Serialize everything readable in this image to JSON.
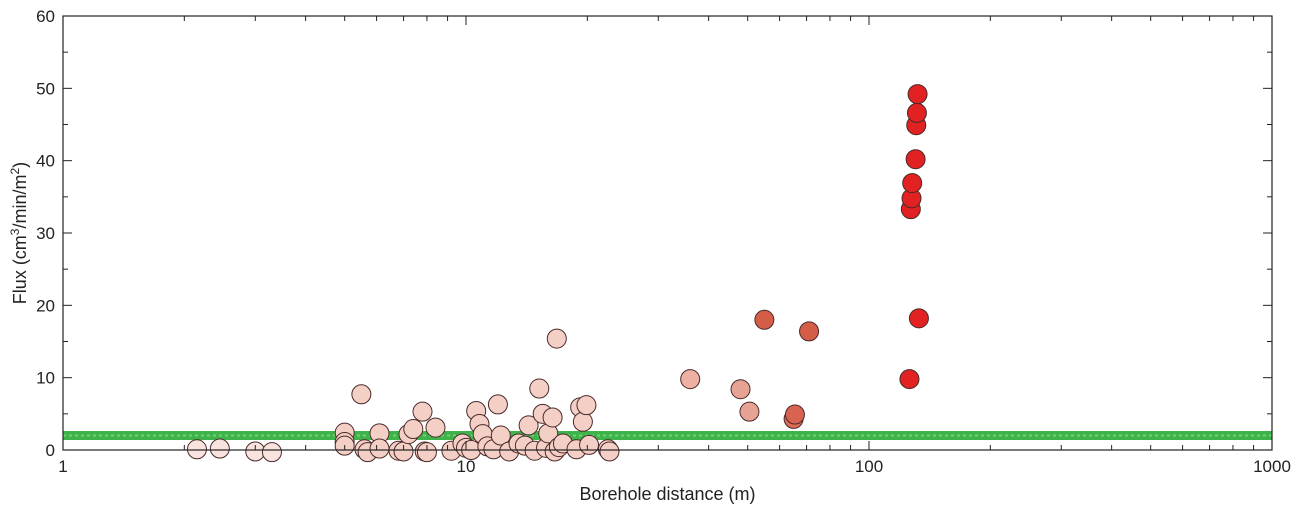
{
  "chart_data": {
    "type": "scatter",
    "xscale": "log",
    "xlabel": "Borehole distance (m)",
    "ylabel": "Flux (cm³/min/m²)",
    "xlim": [
      1,
      1000
    ],
    "ylim": [
      0,
      60
    ],
    "xticks": [
      {
        "value": 1,
        "label": "1"
      },
      {
        "value": 10,
        "label": "10"
      },
      {
        "value": 100,
        "label": "100"
      },
      {
        "value": 1000,
        "label": "1000"
      }
    ],
    "yticks": [
      {
        "value": 0,
        "label": "0"
      },
      {
        "value": 10,
        "label": "10"
      },
      {
        "value": 20,
        "label": "20"
      },
      {
        "value": 30,
        "label": "30"
      },
      {
        "value": 40,
        "label": "40"
      },
      {
        "value": 50,
        "label": "50"
      },
      {
        "value": 60,
        "label": "60"
      }
    ],
    "grid": false,
    "reference_line": {
      "y": 2.0,
      "color": "#3db34a"
    },
    "marker_edge_color": "#4a2a2a",
    "points": [
      {
        "x": 2.15,
        "y": 0.1,
        "color": "#f9e3de"
      },
      {
        "x": 2.45,
        "y": 0.2,
        "color": "#f9e3de"
      },
      {
        "x": 3.0,
        "y": -0.2,
        "color": "#f9e3de"
      },
      {
        "x": 3.3,
        "y": -0.3,
        "color": "#f9e3de"
      },
      {
        "x": 5.0,
        "y": 2.4,
        "color": "#f4cfc6"
      },
      {
        "x": 5.0,
        "y": 1.1,
        "color": "#f4cfc6"
      },
      {
        "x": 5.0,
        "y": 0.6,
        "color": "#f4cfc6"
      },
      {
        "x": 5.5,
        "y": 7.7,
        "color": "#f4cfc6"
      },
      {
        "x": 5.6,
        "y": 0.1,
        "color": "#f4cfc6"
      },
      {
        "x": 5.7,
        "y": -0.3,
        "color": "#f4cfc6"
      },
      {
        "x": 6.1,
        "y": 2.3,
        "color": "#f4cfc6"
      },
      {
        "x": 6.1,
        "y": 0.2,
        "color": "#f4cfc6"
      },
      {
        "x": 6.8,
        "y": -0.1,
        "color": "#f4cfc6"
      },
      {
        "x": 7.0,
        "y": -0.2,
        "color": "#f4cfc6"
      },
      {
        "x": 7.2,
        "y": 2.2,
        "color": "#f4cfc6"
      },
      {
        "x": 7.4,
        "y": 2.9,
        "color": "#f4cfc6"
      },
      {
        "x": 7.8,
        "y": 5.3,
        "color": "#f4cfc6"
      },
      {
        "x": 7.9,
        "y": -0.2,
        "color": "#f4cfc6"
      },
      {
        "x": 8.0,
        "y": -0.3,
        "color": "#f4cfc6"
      },
      {
        "x": 8.4,
        "y": 3.1,
        "color": "#f4cfc6"
      },
      {
        "x": 9.2,
        "y": -0.1,
        "color": "#f4cfc6"
      },
      {
        "x": 9.8,
        "y": 0.9,
        "color": "#f4cfc6"
      },
      {
        "x": 10.0,
        "y": 0.3,
        "color": "#f4cfc6"
      },
      {
        "x": 10.3,
        "y": 0.0,
        "color": "#f4cfc6"
      },
      {
        "x": 10.6,
        "y": 5.4,
        "color": "#f4cfc6"
      },
      {
        "x": 10.8,
        "y": 3.6,
        "color": "#f4cfc6"
      },
      {
        "x": 11.0,
        "y": 2.2,
        "color": "#f4cfc6"
      },
      {
        "x": 11.3,
        "y": 0.5,
        "color": "#f4cfc6"
      },
      {
        "x": 11.7,
        "y": 0.1,
        "color": "#f4cfc6"
      },
      {
        "x": 12.0,
        "y": 6.3,
        "color": "#f4cfc6"
      },
      {
        "x": 12.2,
        "y": 2.0,
        "color": "#f4cfc6"
      },
      {
        "x": 12.8,
        "y": -0.2,
        "color": "#f4cfc6"
      },
      {
        "x": 13.5,
        "y": 0.9,
        "color": "#f4cfc6"
      },
      {
        "x": 14.0,
        "y": 0.6,
        "color": "#f4cfc6"
      },
      {
        "x": 14.3,
        "y": 3.4,
        "color": "#f4cfc6"
      },
      {
        "x": 14.8,
        "y": -0.1,
        "color": "#f4cfc6"
      },
      {
        "x": 15.2,
        "y": 8.5,
        "color": "#f4cfc6"
      },
      {
        "x": 15.5,
        "y": 5.0,
        "color": "#f4cfc6"
      },
      {
        "x": 15.8,
        "y": 0.3,
        "color": "#f4cfc6"
      },
      {
        "x": 16.0,
        "y": 2.3,
        "color": "#f4cfc6"
      },
      {
        "x": 16.4,
        "y": 4.5,
        "color": "#f4cfc6"
      },
      {
        "x": 16.6,
        "y": -0.2,
        "color": "#f4cfc6"
      },
      {
        "x": 16.8,
        "y": 15.4,
        "color": "#f4cfc6"
      },
      {
        "x": 17.0,
        "y": 0.4,
        "color": "#f4cfc6"
      },
      {
        "x": 17.4,
        "y": 0.9,
        "color": "#f4cfc6"
      },
      {
        "x": 18.8,
        "y": 0.1,
        "color": "#f4cfc6"
      },
      {
        "x": 19.2,
        "y": 5.9,
        "color": "#f4cfc6"
      },
      {
        "x": 19.5,
        "y": 3.9,
        "color": "#f4cfc6"
      },
      {
        "x": 19.9,
        "y": 6.2,
        "color": "#f4cfc6"
      },
      {
        "x": 20.2,
        "y": 0.7,
        "color": "#f4cfc6"
      },
      {
        "x": 22.5,
        "y": 0.1,
        "color": "#f4cfc6"
      },
      {
        "x": 22.7,
        "y": -0.2,
        "color": "#f4cfc6"
      },
      {
        "x": 36.0,
        "y": 9.8,
        "color": "#edb0a2"
      },
      {
        "x": 48.0,
        "y": 8.4,
        "color": "#e6a293"
      },
      {
        "x": 50.5,
        "y": 5.3,
        "color": "#e6a293"
      },
      {
        "x": 55.0,
        "y": 18.0,
        "color": "#d45d48"
      },
      {
        "x": 65.0,
        "y": 4.3,
        "color": "#dd6a55"
      },
      {
        "x": 65.5,
        "y": 4.9,
        "color": "#d86350"
      },
      {
        "x": 71.0,
        "y": 16.4,
        "color": "#d45d48"
      },
      {
        "x": 126.0,
        "y": 9.8,
        "color": "#e22222"
      },
      {
        "x": 127.0,
        "y": 33.3,
        "color": "#e22222"
      },
      {
        "x": 127.5,
        "y": 34.8,
        "color": "#e22222"
      },
      {
        "x": 128.0,
        "y": 36.9,
        "color": "#e22222"
      },
      {
        "x": 130.5,
        "y": 40.2,
        "color": "#e22222"
      },
      {
        "x": 131.0,
        "y": 44.9,
        "color": "#e22222"
      },
      {
        "x": 131.5,
        "y": 46.6,
        "color": "#e22222"
      },
      {
        "x": 132.0,
        "y": 49.2,
        "color": "#e22222"
      },
      {
        "x": 133.0,
        "y": 18.2,
        "color": "#e22222"
      }
    ]
  }
}
